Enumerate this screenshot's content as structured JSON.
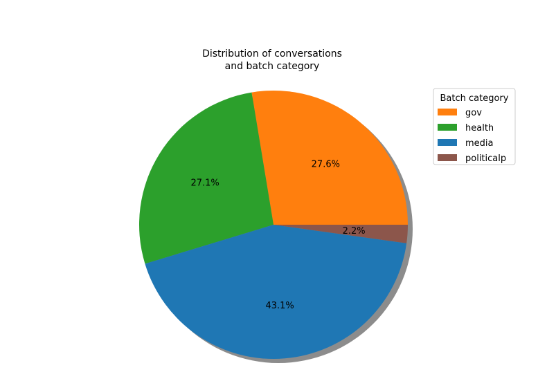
{
  "chart_data": {
    "type": "pie",
    "title_lines": [
      "Distribution of conversations",
      "and batch category"
    ],
    "legend_title": "Batch category",
    "legend_position": "top-right",
    "shadow": true,
    "start_angle_deg": 0,
    "direction": "counterclockwise",
    "slices": [
      {
        "label": "gov",
        "value": 27.6,
        "pct_label": "27.6%",
        "color": "#ff7f0e"
      },
      {
        "label": "health",
        "value": 27.1,
        "pct_label": "27.1%",
        "color": "#2ca02c"
      },
      {
        "label": "media",
        "value": 43.1,
        "pct_label": "43.1%",
        "color": "#1f77b4"
      },
      {
        "label": "politicalp",
        "value": 2.2,
        "pct_label": "2.2%",
        "color": "#8c564b"
      }
    ]
  }
}
